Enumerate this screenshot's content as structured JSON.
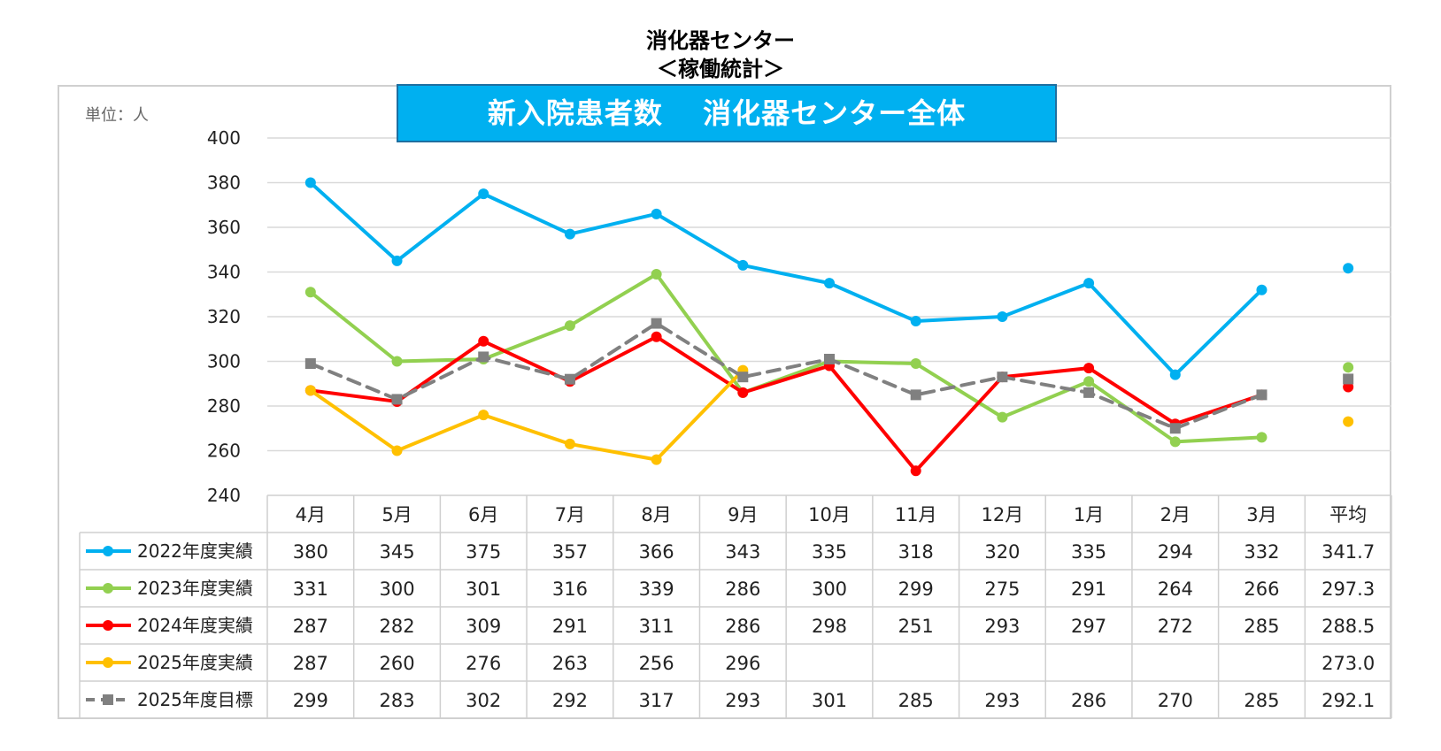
{
  "title_line1": "消化器センター",
  "title_line2": "＜稼働統計＞",
  "banner": "新入院患者数　 消化器センター全体",
  "unit_label": "単位：人",
  "chart_data": {
    "type": "line",
    "title": "新入院患者数　 消化器センター全体",
    "ylabel": "単位：人",
    "ylim": [
      240,
      400
    ],
    "yticks": [
      240,
      260,
      280,
      300,
      320,
      340,
      360,
      380,
      400
    ],
    "grid": true,
    "categories": [
      "4月",
      "5月",
      "6月",
      "7月",
      "8月",
      "9月",
      "10月",
      "11月",
      "12月",
      "1月",
      "2月",
      "3月"
    ],
    "average_label": "平均",
    "series": [
      {
        "name": "2022年度実績",
        "color": "#00b0f0",
        "dashed": false,
        "marker": "circle",
        "values": [
          380,
          345,
          375,
          357,
          366,
          343,
          335,
          318,
          320,
          335,
          294,
          332
        ],
        "average": "341.7"
      },
      {
        "name": "2023年度実績",
        "color": "#92d050",
        "dashed": false,
        "marker": "circle",
        "values": [
          331,
          300,
          301,
          316,
          339,
          286,
          300,
          299,
          275,
          291,
          264,
          266
        ],
        "average": "297.3"
      },
      {
        "name": "2024年度実績",
        "color": "#ff0000",
        "dashed": false,
        "marker": "circle",
        "values": [
          287,
          282,
          309,
          291,
          311,
          286,
          298,
          251,
          293,
          297,
          272,
          285
        ],
        "average": "288.5"
      },
      {
        "name": "2025年度実績",
        "color": "#ffc000",
        "dashed": false,
        "marker": "circle",
        "values": [
          287,
          260,
          276,
          263,
          256,
          296,
          null,
          null,
          null,
          null,
          null,
          null
        ],
        "average": "273.0"
      },
      {
        "name": "2025年度目標",
        "color": "#808080",
        "dashed": true,
        "marker": "square",
        "values": [
          299,
          283,
          302,
          292,
          317,
          293,
          301,
          285,
          293,
          286,
          270,
          285
        ],
        "average": "292.1"
      }
    ]
  }
}
